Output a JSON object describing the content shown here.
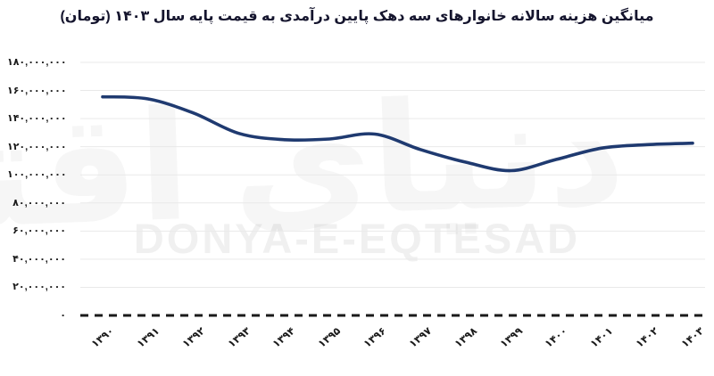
{
  "title": "میانگین هزینه سالانه خانوارهای سه دهک پایین درآمدی به قیمت پایه سال ۱۴۰۳ (تومان)",
  "watermark": {
    "latin": "DONYA-E-EQTESAD",
    "persian": "دنیای اقتصاد"
  },
  "colors": {
    "line": "#1f3a70",
    "grid": "#e9e9e9",
    "axis_dash": "#1a1a1a",
    "title_text": "#15152e",
    "tick_text": "#1a1a1a"
  },
  "chart_data": {
    "type": "line",
    "smooth": true,
    "title": "میانگین هزینه سالانه خانوارهای سه دهک پایین درآمدی به قیمت پایه سال ۱۴۰۳ (تومان)",
    "xlabel": "",
    "ylabel": "",
    "legend": "none",
    "grid": "horizontal",
    "categories": [
      "۱۳۹۰",
      "۱۳۹۱",
      "۱۳۹۲",
      "۱۳۹۳",
      "۱۳۹۴",
      "۱۳۹۵",
      "۱۳۹۶",
      "۱۳۹۷",
      "۱۳۹۸",
      "۱۳۹۹",
      "۱۴۰۰",
      "۱۴۰۱",
      "۱۴۰۲",
      "۱۴۰۳"
    ],
    "values": [
      155500000,
      154000000,
      144000000,
      129500000,
      125000000,
      125500000,
      129000000,
      118000000,
      109000000,
      103000000,
      111000000,
      119000000,
      121500000,
      122500000
    ],
    "ylim": [
      0,
      180000000
    ],
    "y_tick_step": 20000000,
    "y_tick_labels": [
      "۰",
      "۲۰,۰۰۰,۰۰۰",
      "۴۰,۰۰۰,۰۰۰",
      "۶۰,۰۰۰,۰۰۰",
      "۸۰,۰۰۰,۰۰۰",
      "۱۰۰,۰۰۰,۰۰۰",
      "۱۲۰,۰۰۰,۰۰۰",
      "۱۴۰,۰۰۰,۰۰۰",
      "۱۶۰,۰۰۰,۰۰۰",
      "۱۸۰,۰۰۰,۰۰۰"
    ]
  }
}
